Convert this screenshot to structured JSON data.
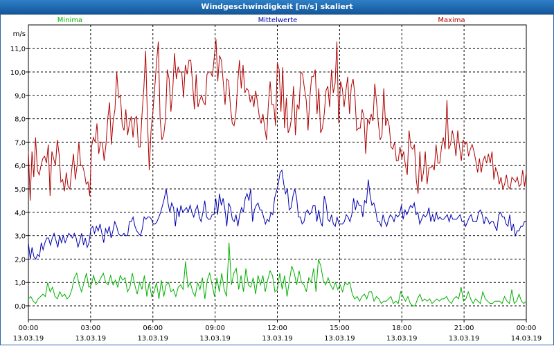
{
  "window": {
    "title": "Windgeschwindigkeit [m/s] skaliert"
  },
  "colors": {
    "minima": "#00b000",
    "mittel": "#0000b0",
    "maxima": "#b00000"
  },
  "chart_data": {
    "type": "line",
    "title": "Windgeschwindigkeit [m/s] skaliert",
    "ylabel": "m/s",
    "ylim": [
      -0.6,
      11.8
    ],
    "xlim": [
      0,
      24
    ],
    "yticks": [
      "0,0",
      "1,0",
      "2,0",
      "3,0",
      "4,0",
      "5,0",
      "6,0",
      "7,0",
      "8,0",
      "9,0",
      "10,0",
      "11,0"
    ],
    "ytick_values": [
      0,
      1,
      2,
      3,
      4,
      5,
      6,
      7,
      8,
      9,
      10,
      11
    ],
    "xticks": [
      {
        "time": "00:00",
        "date": "13.03.19",
        "x": 0
      },
      {
        "time": "03:00",
        "date": "13.03.19",
        "x": 3
      },
      {
        "time": "06:00",
        "date": "13.03.19",
        "x": 6
      },
      {
        "time": "09:00",
        "date": "13.03.19",
        "x": 9
      },
      {
        "time": "12:00",
        "date": "13.03.19",
        "x": 12
      },
      {
        "time": "15:00",
        "date": "13.03.19",
        "x": 15
      },
      {
        "time": "18:00",
        "date": "13.03.19",
        "x": 18
      },
      {
        "time": "21:00",
        "date": "13.03.19",
        "x": 21
      },
      {
        "time": "00:00",
        "date": "14.03.19",
        "x": 24
      }
    ],
    "grid": true,
    "legend_position": "top",
    "series": [
      {
        "name": "Minima",
        "color": "#00b000",
        "x_step_hours": 0.2,
        "values": [
          0.3,
          0.4,
          0.2,
          0.1,
          0.3,
          0.4,
          0.5,
          0.4,
          1.0,
          0.6,
          0.8,
          0.4,
          0.3,
          0.6,
          0.4,
          0.5,
          0.3,
          0.4,
          0.7,
          1.2,
          1.4,
          0.9,
          0.6,
          1.0,
          1.4,
          0.8,
          0.9,
          1.3,
          0.9,
          1.0,
          1.2,
          1.4,
          1.0,
          0.9,
          1.3,
          0.9,
          1.1,
          0.8,
          1.3,
          1.1,
          1.2,
          0.6,
          0.8,
          1.4,
          0.9,
          0.5,
          1.0,
          0.7,
          1.3,
          0.4,
          1.0,
          0.4,
          0.6,
          1.0,
          0.3,
          1.1,
          0.4,
          0.9,
          1.0,
          0.6,
          0.7,
          0.4,
          0.8,
          0.9,
          0.7,
          1.9,
          0.8,
          1.0,
          0.6,
          0.4,
          1.0,
          0.7,
          1.2,
          0.3,
          1.1,
          1.4,
          0.9,
          0.4,
          1.2,
          0.6,
          1.4,
          0.7,
          0.4,
          2.7,
          0.9,
          1.4,
          1.6,
          0.7,
          1.3,
          0.6,
          1.6,
          0.9,
          0.8,
          1.2,
          0.5,
          1.3,
          0.9,
          1.3,
          0.6,
          1.1,
          1.5,
          1.3,
          0.6,
          0.7,
          1.4,
          0.7,
          1.3,
          0.4,
          1.1,
          1.7,
          1.4,
          0.9,
          1.5,
          1.0,
          0.9,
          0.6,
          1.2,
          1.0,
          1.6,
          0.6,
          2.0,
          1.7,
          1.1,
          0.9,
          1.2,
          0.9,
          0.7,
          1.0,
          0.7,
          0.9,
          0.6,
          1.0,
          0.9,
          1.0,
          0.5,
          0.3,
          0.4,
          0.2,
          0.4,
          0.5,
          0.3,
          0.6,
          0.6,
          0.2,
          0.4,
          0.3,
          0.1,
          0.2,
          0.2,
          0.3,
          0.4,
          0.1,
          0.2,
          0.1,
          0.6,
          0.4,
          0.2,
          0.4,
          0.1,
          0.0,
          0.0,
          0.3,
          0.5,
          0.2,
          0.3,
          0.2,
          0.3,
          0.1,
          0.2,
          0.3,
          0.2,
          0.3,
          0.3,
          0.4,
          0.2,
          0.1,
          0.3,
          0.4,
          0.3,
          0.8,
          0.2,
          0.3,
          0.6,
          0.3,
          0.1,
          0.3,
          0.2,
          0.1,
          0.6,
          0.3,
          0.2,
          0.1,
          0.1,
          0.2,
          0.2,
          0.2,
          0.1,
          0.4,
          0.2,
          0.1,
          0.7,
          0.1,
          0.2,
          0.5,
          0.2,
          0.1,
          0.2
        ]
      },
      {
        "name": "Mittelwerte",
        "color": "#0000b0",
        "x_step_hours": 0.2,
        "values": [
          2.7,
          2.0,
          2.5,
          2.1,
          2.0,
          2.2,
          2.1,
          2.7,
          2.4,
          2.7,
          2.9,
          2.9,
          2.6,
          2.9,
          3.1,
          2.8,
          2.5,
          3.0,
          2.7,
          3.0,
          2.7,
          2.9,
          3.1,
          3.0,
          2.9,
          3.1,
          2.9,
          2.5,
          2.8,
          3.1,
          2.6,
          2.9,
          2.5,
          2.7,
          3.3,
          3.4,
          3.1,
          3.4,
          3.2,
          3.5,
          3.1,
          2.7,
          3.3,
          3.1,
          3.4,
          2.9,
          3.2,
          3.6,
          3.4,
          3.1,
          3.0,
          3.0,
          3.1,
          3.0,
          3.0,
          3.6,
          3.6,
          3.8,
          3.4,
          3.2,
          3.1,
          3.0,
          3.3,
          3.8,
          3.7,
          3.8,
          3.8,
          3.7,
          3.5,
          3.5,
          3.6,
          3.8,
          4.0,
          4.3,
          4.6,
          5.0,
          4.4,
          4.0,
          4.4,
          4.2,
          3.4,
          4.2,
          3.8,
          4.3,
          4.0,
          4.1,
          4.2,
          4.0,
          4.3,
          4.0,
          3.8,
          4.1,
          4.3,
          3.8,
          3.6,
          4.0,
          4.5,
          3.8,
          3.7,
          3.7,
          3.9,
          3.9,
          4.6,
          3.9,
          4.8,
          4.3,
          4.6,
          4.1,
          3.4,
          4.4,
          4.2,
          3.7,
          3.6,
          3.9,
          3.4,
          3.9,
          4.2,
          4.0,
          4.6,
          4.8,
          4.5,
          5.0,
          3.6,
          4.1,
          4.3,
          4.4,
          4.1,
          4.1,
          3.8,
          3.5,
          3.7,
          3.6,
          4.0,
          3.9,
          4.6,
          4.9,
          5.2,
          5.7,
          5.8,
          5.2,
          4.8,
          5.0,
          4.1,
          4.2,
          4.7,
          5.0,
          4.6,
          3.8,
          3.8,
          3.5,
          3.6,
          4.0,
          4.1,
          3.9,
          4.0,
          4.3,
          4.3,
          3.6,
          4.1,
          3.6,
          3.4,
          4.7,
          4.4,
          3.7,
          3.6,
          3.9,
          3.5,
          3.4,
          3.8,
          3.5,
          3.5,
          3.5,
          3.6,
          3.9,
          3.8,
          3.6,
          3.9,
          4.6,
          4.1,
          4.5,
          4.3,
          4.3,
          3.8,
          4.5,
          4.4,
          5.4,
          4.7,
          4.3,
          4.4,
          4.1,
          3.6,
          3.6,
          3.4,
          3.9,
          3.6,
          3.4,
          3.7,
          3.9,
          3.8,
          3.6,
          3.9,
          3.8,
          3.9,
          4.3,
          3.7,
          4.1,
          3.9,
          4.1,
          4.3,
          4.2,
          4.4,
          3.9,
          4.0,
          3.5,
          3.7,
          3.9,
          3.8,
          3.9,
          4.2,
          3.6,
          3.9,
          3.6,
          4.0,
          3.7,
          3.8,
          3.7,
          3.7,
          3.8,
          3.9,
          3.6,
          3.9,
          3.7,
          3.7,
          3.7,
          3.8,
          3.9,
          3.6,
          3.6,
          3.4,
          3.6,
          3.8,
          3.9,
          3.6,
          3.6,
          3.6,
          4.0,
          4.1,
          3.9,
          3.5,
          3.8,
          3.7,
          3.5,
          3.6,
          3.6,
          3.4,
          3.2,
          3.9,
          4.0,
          3.8,
          3.8,
          3.5,
          3.4,
          3.9,
          3.2,
          3.5,
          3.0,
          3.2,
          3.2,
          3.4,
          3.4,
          3.6,
          3.6
        ]
      },
      {
        "name": "Maxima",
        "color": "#b00000",
        "x_step_hours": 0.2,
        "values": [
          6.6,
          4.5,
          6.6,
          5.5,
          7.2,
          5.8,
          5.6,
          6.0,
          6.3,
          6.4,
          6.1,
          6.9,
          4.7,
          6.6,
          6.3,
          6.0,
          7.1,
          6.5,
          5.3,
          5.4,
          4.9,
          5.7,
          5.1,
          5.0,
          5.8,
          6.5,
          5.4,
          6.0,
          7.0,
          6.0,
          6.0,
          5.7,
          5.2,
          5.3,
          4.7,
          6.8,
          7.2,
          7.0,
          7.8,
          6.5,
          7.0,
          7.0,
          6.2,
          6.9,
          8.0,
          8.7,
          6.9,
          7.9,
          8.4,
          10.0,
          8.9,
          9.0,
          7.7,
          7.5,
          8.4,
          7.3,
          7.8,
          8.1,
          7.2,
          8.0,
          8.1,
          6.8,
          6.8,
          8.2,
          9.3,
          10.9,
          8.0,
          5.8,
          7.5,
          8.3,
          9.3,
          10.4,
          11.3,
          8.0,
          7.1,
          7.3,
          8.0,
          10.1,
          9.7,
          8.3,
          9.2,
          10.8,
          9.7,
          10.2,
          10.0,
          10.0,
          8.9,
          10.3,
          9.9,
          10.5,
          10.5,
          9.5,
          8.4,
          9.9,
          8.5,
          8.8,
          9.0,
          8.7,
          8.6,
          9.9,
          10.0,
          10.0,
          9.8,
          10.6,
          11.4,
          9.6,
          10.7,
          10.5,
          9.6,
          8.6,
          9.7,
          9.6,
          8.5,
          7.8,
          7.7,
          8.2,
          9.5,
          10.5,
          9.3,
          10.3,
          9.1,
          9.3,
          9.2,
          8.7,
          9.0,
          8.5,
          9.2,
          8.7,
          8.1,
          7.8,
          8.2,
          7.6,
          7.1,
          8.6,
          9.6,
          8.6,
          8.6,
          7.7,
          10.4,
          10.1,
          8.3,
          10.2,
          7.6,
          8.9,
          7.4,
          7.6,
          8.1,
          9.4,
          7.3,
          8.6,
          8.4,
          10.0,
          9.9,
          9.3,
          8.8,
          7.5,
          8.9,
          9.8,
          9.8,
          10.1,
          8.2,
          9.3,
          7.4,
          7.6,
          8.2,
          9.2,
          9.4,
          8.5,
          10.1,
          9.1,
          9.5,
          11.3,
          7.8,
          9.6,
          9.3,
          8.5,
          9.2,
          9.8,
          8.2,
          9.4,
          9.7,
          9.0,
          7.5,
          7.6,
          7.6,
          8.4,
          8.1,
          6.5,
          8.0,
          7.8,
          8.2,
          7.9,
          9.5,
          8.7,
          7.8,
          7.1,
          7.3,
          9.3,
          7.7,
          8.0,
          7.7,
          6.8,
          6.7,
          7.0,
          6.2,
          6.2,
          6.8,
          6.3,
          6.6,
          6.0,
          5.6,
          7.5,
          6.8,
          6.7,
          6.9,
          5.4,
          4.8,
          6.6,
          5.3,
          5.7,
          6.6,
          5.2,
          5.9,
          5.9,
          6.0,
          5.8,
          6.9,
          6.1,
          6.1,
          6.8,
          7.2,
          6.7,
          8.8,
          6.7,
          6.9,
          7.5,
          7.1,
          6.4,
          7.5,
          6.8,
          6.2,
          7.1,
          6.9,
          7.0,
          6.4,
          6.7,
          6.9,
          6.6,
          6.2,
          5.7,
          6.3,
          5.7,
          6.2,
          6.4,
          6.1,
          6.5,
          6.1,
          6.6,
          5.4,
          5.9,
          5.7,
          5.2,
          5.5,
          5.0,
          5.2,
          5.6,
          5.1,
          5.0,
          5.5,
          5.4,
          5.3,
          5.5,
          5.1,
          5.2,
          5.8,
          5.1,
          5.7
        ]
      }
    ]
  }
}
